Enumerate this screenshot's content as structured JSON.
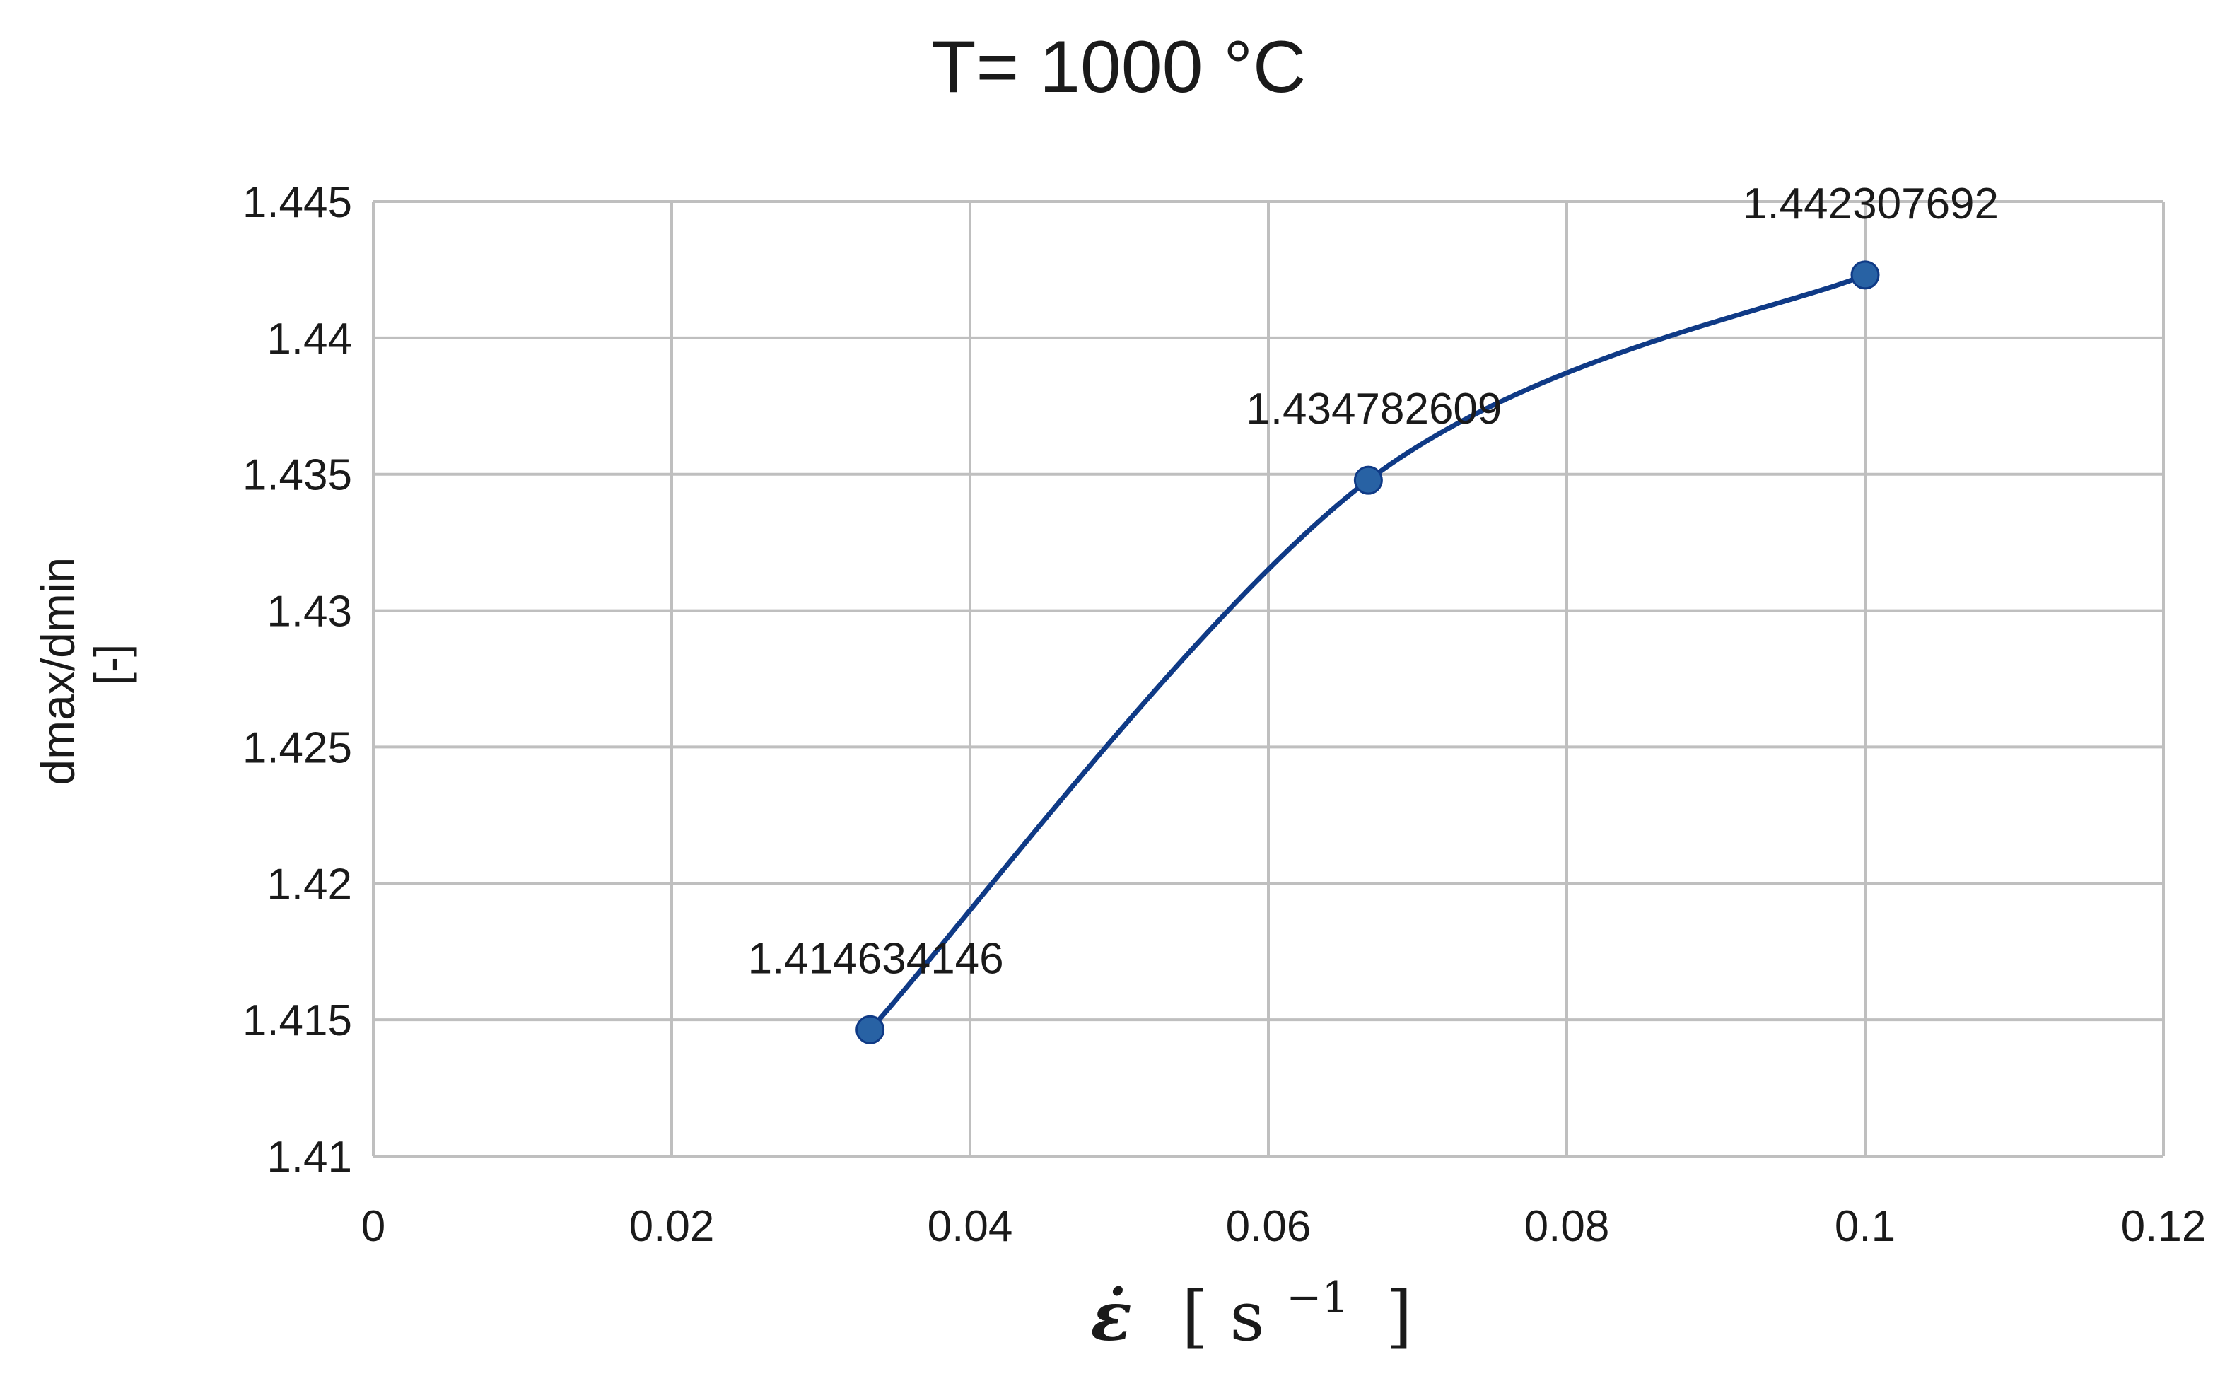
{
  "chart_data": {
    "type": "line",
    "title": "T= 1000 °C",
    "xlabel": {
      "symbol": "ε̇",
      "unit_open": "[ s",
      "unit_exp": "−1",
      "unit_close": "]"
    },
    "ylabel": [
      "dmax/dmin",
      "[-]"
    ],
    "xlim": [
      0,
      0.12
    ],
    "ylim": [
      1.41,
      1.445
    ],
    "xticks": [
      "0",
      "0.02",
      "0.04",
      "0.06",
      "0.08",
      "0.1",
      "0.12"
    ],
    "yticks": [
      "1.41",
      "1.415",
      "1.42",
      "1.425",
      "1.43",
      "1.435",
      "1.44",
      "1.445"
    ],
    "grid": true,
    "smooth": true,
    "series": [
      {
        "color": "#0f3a86",
        "marker_color": "#2862a4",
        "points": [
          {
            "x": 0.0333,
            "y": 1.414634146,
            "label": "1.414634146"
          },
          {
            "x": 0.0667,
            "y": 1.434782609,
            "label": "1.434782609"
          },
          {
            "x": 0.1,
            "y": 1.442307692,
            "label": "1.442307692"
          }
        ]
      }
    ]
  }
}
